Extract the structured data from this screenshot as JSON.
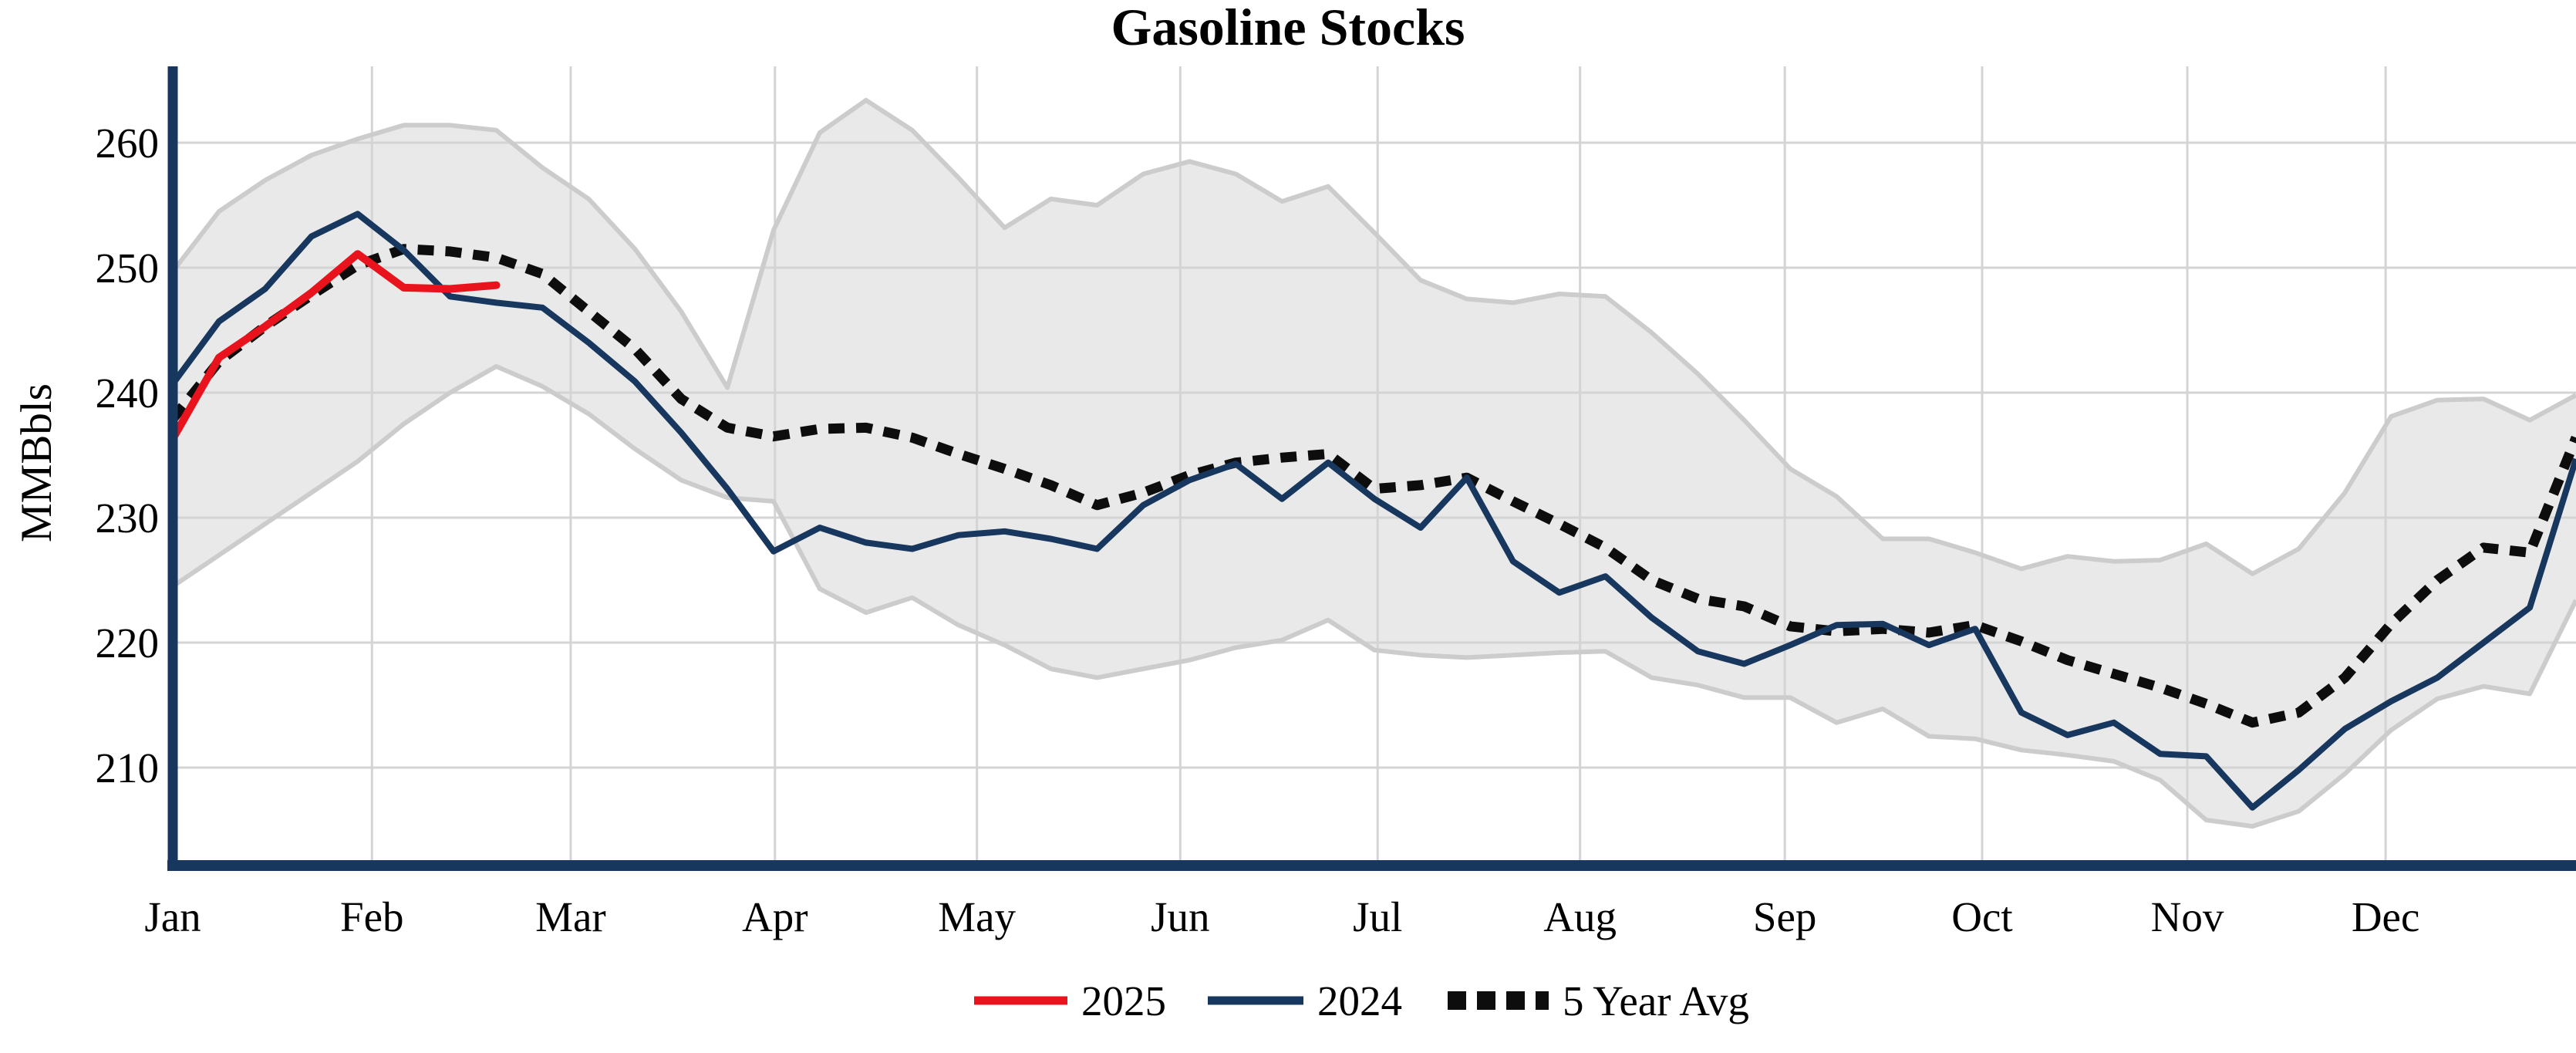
{
  "title": "Gasoline Stocks",
  "colors": {
    "red_2025": "#e8131d",
    "navy_2024": "#17375e",
    "avg_dotted": "#0d0d0d",
    "band_fill": "#e9e9e9",
    "band_edge": "#cccccc",
    "gridline": "#d4d4d4",
    "axis": "#17375e",
    "background": "#ffffff"
  },
  "legend": {
    "items": [
      {
        "label": "2025",
        "color": "#e8131d",
        "style": "solid"
      },
      {
        "label": "2024",
        "color": "#17375e",
        "style": "solid"
      },
      {
        "label": "5 Year Avg",
        "color": "#0d0d0d",
        "style": "dotted"
      }
    ]
  },
  "chart_data": {
    "type": "line",
    "title": "Gasoline Stocks",
    "xlabel": "",
    "ylabel": "MMBbls",
    "ylim": [
      202,
      266
    ],
    "grid": true,
    "legend_position": "bottom-center",
    "x_unit": "week of year (0-52)",
    "y_ticks": [
      210,
      220,
      230,
      240,
      250,
      260
    ],
    "x_tick_labels": [
      "Jan",
      "Feb",
      "Mar",
      "Apr",
      "May",
      "Jun",
      "Jul",
      "Aug",
      "Sep",
      "Oct",
      "Nov",
      "Dec"
    ],
    "month_start_weeks": [
      0,
      4.31,
      8.61,
      13.03,
      17.4,
      21.8,
      26.07,
      30.45,
      34.88,
      39.15,
      43.59,
      47.88
    ],
    "series": [
      {
        "name": "2025",
        "color": "#e8131d",
        "style": "solid",
        "weeks": [
          0,
          1,
          2,
          3,
          4,
          5,
          6,
          7
        ],
        "values": [
          236.3,
          242.8,
          245.3,
          248.0,
          251.1,
          248.4,
          248.3,
          248.6
        ]
      },
      {
        "name": "2024",
        "color": "#17375e",
        "style": "solid",
        "weeks": "0-52",
        "values": [
          240.7,
          245.7,
          248.3,
          252.5,
          254.3,
          251.4,
          247.7,
          247.2,
          246.8,
          244.0,
          240.9,
          236.8,
          232.3,
          227.3,
          229.2,
          228.0,
          227.5,
          228.6,
          228.9,
          228.3,
          227.5,
          231.0,
          233.0,
          234.3,
          231.5,
          234.4,
          231.5,
          229.2,
          233.2,
          226.5,
          224.0,
          225.3,
          222.0,
          219.3,
          218.3,
          219.8,
          221.4,
          221.5,
          219.8,
          221.1,
          214.4,
          212.6,
          213.6,
          211.1,
          210.9,
          206.8,
          209.8,
          213.1,
          215.3,
          217.2,
          220.0,
          222.8,
          234.7
        ]
      },
      {
        "name": "5 Year Avg",
        "color": "#0d0d0d",
        "style": "dotted",
        "weeks": "0-52",
        "values": [
          237.9,
          242.5,
          245.3,
          247.8,
          250.2,
          251.5,
          251.3,
          250.8,
          249.5,
          246.5,
          243.5,
          239.5,
          237.2,
          236.5,
          237.1,
          237.2,
          236.4,
          235.1,
          233.9,
          232.6,
          231.0,
          232.0,
          233.4,
          234.4,
          234.8,
          235.1,
          232.3,
          232.6,
          233.2,
          231.3,
          229.5,
          227.6,
          225.0,
          223.5,
          222.9,
          221.3,
          220.9,
          221.1,
          220.8,
          221.4,
          220.1,
          218.6,
          217.5,
          216.4,
          215.1,
          213.6,
          214.4,
          217.2,
          221.5,
          225.0,
          227.6,
          227.2,
          236.4
        ]
      }
    ],
    "band": {
      "name": "5 Year Range",
      "fill": "#e9e9e9",
      "edge": "#cccccc",
      "upper": [
        249.7,
        254.5,
        257.0,
        259.0,
        260.3,
        261.4,
        261.4,
        261.0,
        258.0,
        255.5,
        251.5,
        246.5,
        240.4,
        253.0,
        260.8,
        263.4,
        261.0,
        257.2,
        253.2,
        255.5,
        255.0,
        257.5,
        258.5,
        257.5,
        255.3,
        256.5,
        252.8,
        249.0,
        247.5,
        247.2,
        247.9,
        247.7,
        244.8,
        241.5,
        237.8,
        233.9,
        231.7,
        228.3,
        228.3,
        227.2,
        225.9,
        226.9,
        226.5,
        226.6,
        227.9,
        225.5,
        227.5,
        232.0,
        238.1,
        239.4,
        239.5,
        237.8,
        239.8
      ],
      "lower": [
        224.5,
        227.0,
        229.5,
        232.0,
        234.5,
        237.5,
        240.0,
        242.1,
        240.5,
        238.3,
        235.5,
        233.0,
        231.6,
        231.3,
        224.3,
        222.4,
        223.6,
        221.4,
        219.8,
        217.9,
        217.2,
        217.9,
        218.6,
        219.6,
        220.2,
        221.8,
        219.4,
        219.0,
        218.8,
        219.0,
        219.2,
        219.3,
        217.2,
        216.6,
        215.6,
        215.6,
        213.6,
        214.7,
        212.5,
        212.3,
        211.4,
        211.0,
        210.5,
        209.0,
        205.8,
        205.3,
        206.5,
        209.5,
        213.0,
        215.5,
        216.5,
        215.9,
        223.4
      ]
    }
  }
}
